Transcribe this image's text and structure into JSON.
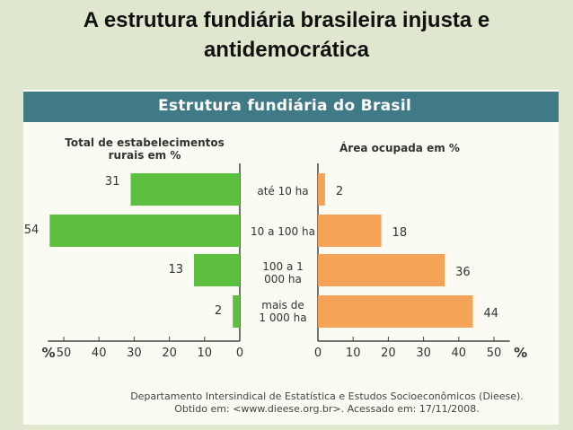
{
  "slide": {
    "title": "A estrutura fundiária brasileira injusta e antidemocrática"
  },
  "figure": {
    "header": "Estrutura fundiária do Brasil",
    "source_line1": "Departamento Intersindical de Estatística e Estudos Socioeconômicos (Dieese).",
    "source_line2": "Obtido em: <www.dieese.org.br>. Acessado em: 17/11/2008."
  },
  "colors": {
    "left_bar": "#5cbf3f",
    "right_bar": "#f5a356",
    "header_bg": "#3f7a86"
  },
  "chart_data": {
    "type": "bar",
    "categories": [
      "até 10 ha",
      "10 a 100 ha",
      "100 a 1 000 ha",
      "mais de 1 000 ha"
    ],
    "axis_unit": "%",
    "series": [
      {
        "name": "Total de estabelecimentos rurais em %",
        "values": [
          31,
          54,
          13,
          2
        ],
        "xlim": [
          0,
          55
        ],
        "ticks": [
          "50",
          "40",
          "30",
          "20",
          "10",
          "0"
        ],
        "tick_values": [
          50,
          40,
          30,
          20,
          10,
          0
        ]
      },
      {
        "name": "Área ocupada em %",
        "values": [
          2,
          18,
          36,
          44
        ],
        "xlim": [
          0,
          55
        ],
        "ticks": [
          "0",
          "10",
          "20",
          "30",
          "40",
          "50"
        ],
        "tick_values": [
          0,
          10,
          20,
          30,
          40,
          50
        ]
      }
    ]
  }
}
